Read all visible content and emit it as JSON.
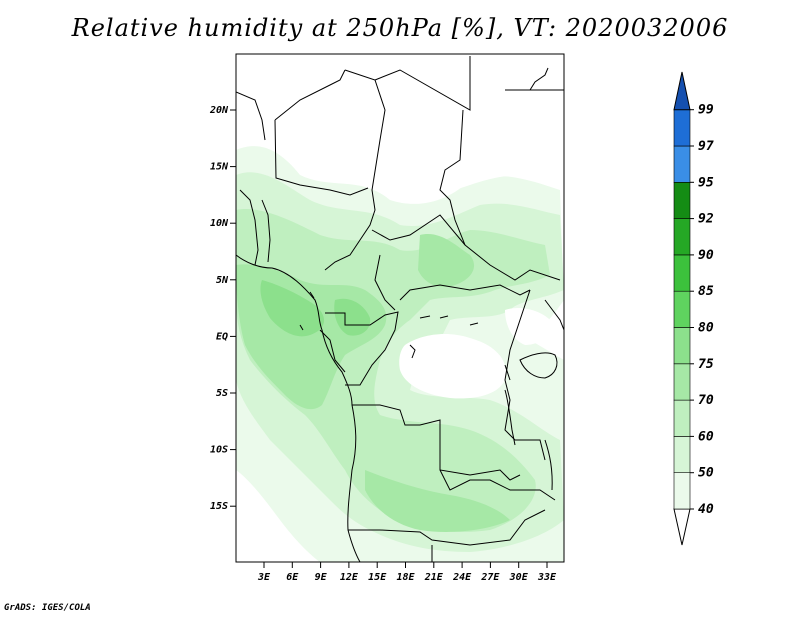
{
  "title": "Relative humidity at 250hPa [%], VT: 2020032006",
  "credit": "GrADS: IGES/COLA",
  "map": {
    "lat_labels": [
      "20N",
      "15N",
      "10N",
      "5N",
      "EQ",
      "5S",
      "10S",
      "15S"
    ],
    "lon_labels": [
      "3E",
      "6E",
      "9E",
      "12E",
      "15E",
      "18E",
      "21E",
      "24E",
      "27E",
      "30E",
      "33E"
    ]
  },
  "colorbar": {
    "labels": [
      "40",
      "50",
      "60",
      "70",
      "75",
      "80",
      "85",
      "90",
      "92",
      "95",
      "97",
      "99"
    ],
    "colors": {
      "c40": "#ebfaeb",
      "c50": "#d6f5d6",
      "c60": "#bfefbf",
      "c70": "#a6e8a6",
      "c75": "#8ce08c",
      "c80": "#5fd35f",
      "c85": "#3cc13c",
      "c90": "#25a825",
      "c92": "#148c14",
      "c95": "#3a8ee6",
      "c97": "#1e6ed6",
      "c99": "#1550b0"
    }
  }
}
